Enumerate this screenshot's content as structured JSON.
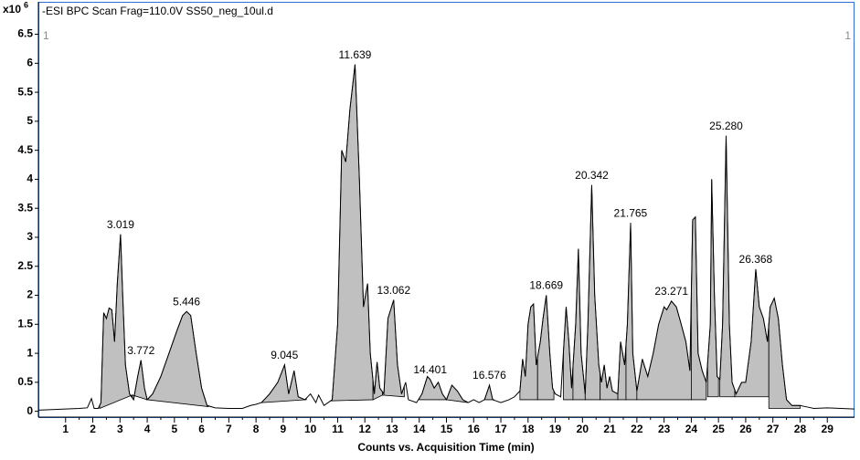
{
  "chart_data": {
    "type": "chromatogram",
    "title": "-ESI BPC Scan Frag=110.0V SS50_neg_10ul.d",
    "y_multiplier": "x10",
    "y_multiplier_exponent": "6",
    "x_label": "Counts vs. Acquisition Time (min)",
    "panel_markers": [
      "1",
      "1"
    ],
    "xlim": [
      0,
      30
    ],
    "ylim": [
      -0.1,
      6.65
    ],
    "xticks": [
      1,
      2,
      3,
      4,
      5,
      6,
      7,
      8,
      9,
      10,
      11,
      12,
      13,
      14,
      15,
      16,
      17,
      18,
      19,
      20,
      21,
      22,
      23,
      24,
      25,
      26,
      27,
      28,
      29
    ],
    "yticks": [
      0,
      0.5,
      1,
      1.5,
      2,
      2.5,
      3,
      3.5,
      4,
      4.5,
      5,
      5.5,
      6,
      6.5
    ],
    "color": "#000000",
    "fill_color": "#c0c0c0",
    "frame_color": "#2e6fd3",
    "x": [
      0,
      0.5,
      1,
      1.5,
      1.8,
      1.95,
      2.05,
      2.2,
      2.3,
      2.4,
      2.5,
      2.6,
      2.7,
      2.8,
      2.9,
      3.02,
      3.1,
      3.2,
      3.35,
      3.5,
      3.65,
      3.77,
      3.9,
      4,
      4.2,
      4.5,
      4.8,
      5.1,
      5.3,
      5.45,
      5.6,
      5.8,
      6,
      6.2,
      6.5,
      7,
      7.5,
      7.8,
      8,
      8.2,
      8.5,
      8.8,
      9.05,
      9.2,
      9.4,
      9.55,
      9.8,
      10,
      10.2,
      10.3,
      10.5,
      10.8,
      11,
      11.15,
      11.3,
      11.45,
      11.64,
      11.8,
      11.95,
      12.1,
      12.2,
      12.35,
      12.45,
      12.55,
      12.7,
      12.85,
      13.06,
      13.2,
      13.35,
      13.5,
      13.6,
      13.9,
      14.1,
      14.3,
      14.4,
      14.55,
      14.7,
      14.85,
      15,
      15.2,
      15.4,
      15.6,
      15.8,
      16,
      16.2,
      16.4,
      16.58,
      16.7,
      17,
      17.3,
      17.5,
      17.7,
      17.8,
      17.9,
      18,
      18.1,
      18.2,
      18.3,
      18.45,
      18.55,
      18.67,
      18.8,
      18.9,
      19,
      19.2,
      19.4,
      19.5,
      19.6,
      19.75,
      19.85,
      19.95,
      20.1,
      20.2,
      20.34,
      20.45,
      20.6,
      20.7,
      20.8,
      20.9,
      21,
      21.1,
      21.3,
      21.4,
      21.55,
      21.65,
      21.77,
      21.85,
      22,
      22.2,
      22.4,
      22.6,
      22.8,
      23,
      23.1,
      23.27,
      23.45,
      23.6,
      23.8,
      23.95,
      24.05,
      24.15,
      24.25,
      24.4,
      24.55,
      24.7,
      24.75,
      24.85,
      24.95,
      25.05,
      25.15,
      25.28,
      25.4,
      25.5,
      25.65,
      25.85,
      26,
      26.2,
      26.37,
      26.5,
      26.65,
      26.8,
      26.9,
      27.05,
      27.2,
      27.35,
      27.5,
      27.7,
      28,
      28.2,
      28.5,
      29,
      29.5,
      30
    ],
    "values": [
      0.02,
      0.03,
      0.04,
      0.05,
      0.06,
      0.22,
      0.05,
      0.05,
      0.15,
      1.7,
      1.6,
      1.78,
      1.75,
      1.2,
      2.2,
      3.05,
      2.0,
      0.8,
      0.3,
      0.2,
      0.6,
      0.88,
      0.4,
      0.2,
      0.3,
      0.6,
      1.0,
      1.4,
      1.65,
      1.72,
      1.65,
      1.0,
      0.4,
      0.1,
      0.06,
      0.05,
      0.05,
      0.1,
      0.12,
      0.15,
      0.3,
      0.5,
      0.8,
      0.3,
      0.7,
      0.25,
      0.2,
      0.3,
      0.15,
      0.28,
      0.1,
      0.2,
      1.5,
      4.5,
      4.3,
      5.2,
      5.98,
      4.0,
      1.8,
      2.2,
      1.0,
      0.3,
      0.85,
      0.4,
      0.3,
      1.6,
      1.92,
      0.8,
      0.3,
      0.5,
      0.2,
      0.15,
      0.3,
      0.6,
      0.55,
      0.4,
      0.5,
      0.3,
      0.2,
      0.45,
      0.35,
      0.2,
      0.15,
      0.2,
      0.15,
      0.2,
      0.45,
      0.2,
      0.15,
      0.2,
      0.25,
      0.35,
      0.9,
      0.6,
      1.5,
      1.8,
      1.85,
      0.8,
      1.2,
      1.6,
      2.0,
      1.0,
      0.4,
      0.3,
      0.25,
      1.8,
      1.2,
      0.4,
      1.5,
      2.8,
      1.0,
      0.3,
      1.5,
      3.9,
      2.0,
      0.8,
      0.5,
      0.8,
      0.4,
      0.6,
      0.35,
      0.3,
      1.2,
      0.8,
      1.5,
      3.25,
      1.0,
      0.35,
      0.9,
      0.6,
      1.0,
      1.5,
      1.8,
      1.75,
      1.9,
      1.8,
      1.55,
      1.2,
      0.7,
      3.3,
      3.35,
      1.0,
      0.7,
      0.5,
      1.5,
      4.0,
      2.0,
      0.6,
      0.55,
      1.5,
      4.75,
      1.5,
      0.5,
      0.3,
      0.5,
      0.5,
      1.2,
      2.45,
      1.8,
      1.6,
      1.2,
      1.8,
      1.95,
      1.6,
      0.8,
      0.2,
      0.1,
      0.1,
      0.08,
      0.05,
      0.06,
      0.05,
      0.04
    ],
    "regions": [
      {
        "x": [
          2.25,
          3.45
        ],
        "baseline": [
          0.05,
          0.28
        ]
      },
      {
        "x": [
          3.45,
          4.0
        ],
        "baseline": [
          0.28,
          0.2
        ]
      },
      {
        "x": [
          4.0,
          6.25
        ],
        "baseline": [
          0.2,
          0.08
        ]
      },
      {
        "x": [
          8.2,
          9.85
        ],
        "baseline": [
          0.15,
          0.2
        ]
      },
      {
        "x": [
          10.75,
          12.3
        ],
        "baseline": [
          0.18,
          0.2
        ]
      },
      {
        "x": [
          12.3,
          12.65
        ],
        "baseline": [
          0.2,
          0.28
        ]
      },
      {
        "x": [
          12.65,
          13.45
        ],
        "baseline": [
          0.28,
          0.25
        ]
      },
      {
        "x": [
          14.0,
          15.0
        ],
        "baseline": [
          0.2,
          0.2
        ]
      },
      {
        "x": [
          15.0,
          15.8
        ],
        "baseline": [
          0.2,
          0.15
        ]
      },
      {
        "x": [
          16.4,
          16.75
        ],
        "baseline": [
          0.2,
          0.2
        ]
      },
      {
        "x": [
          17.7,
          18.35
        ],
        "baseline": [
          0.2,
          0.2
        ]
      },
      {
        "x": [
          18.35,
          18.95
        ],
        "baseline": [
          0.2,
          0.2
        ]
      },
      {
        "x": [
          19.3,
          19.65
        ],
        "baseline": [
          0.2,
          0.2
        ]
      },
      {
        "x": [
          19.65,
          20.1
        ],
        "baseline": [
          0.2,
          0.2
        ]
      },
      {
        "x": [
          20.1,
          20.65
        ],
        "baseline": [
          0.2,
          0.2
        ]
      },
      {
        "x": [
          20.65,
          21.3
        ],
        "baseline": [
          0.2,
          0.2
        ]
      },
      {
        "x": [
          21.3,
          21.6
        ],
        "baseline": [
          0.2,
          0.2
        ]
      },
      {
        "x": [
          21.6,
          22.0
        ],
        "baseline": [
          0.2,
          0.2
        ]
      },
      {
        "x": [
          22.0,
          24.0
        ],
        "baseline": [
          0.2,
          0.2
        ]
      },
      {
        "x": [
          24.0,
          24.55
        ],
        "baseline": [
          0.2,
          0.2
        ]
      },
      {
        "x": [
          24.6,
          25.0
        ],
        "baseline": [
          0.25,
          0.25
        ]
      },
      {
        "x": [
          25.05,
          25.6
        ],
        "baseline": [
          0.25,
          0.25
        ]
      },
      {
        "x": [
          25.6,
          26.85
        ],
        "baseline": [
          0.25,
          0.25
        ]
      },
      {
        "x": [
          26.85,
          28.0
        ],
        "baseline": [
          0.05,
          0.05
        ]
      }
    ],
    "peak_labels": [
      {
        "value": 3.019,
        "label": "3.019",
        "y": 3.05
      },
      {
        "value": 3.772,
        "label": "3.772",
        "y": 0.88
      },
      {
        "value": 5.446,
        "label": "5.446",
        "y": 1.72
      },
      {
        "value": 9.045,
        "label": "9.045",
        "y": 0.8
      },
      {
        "value": 11.639,
        "label": "11.639",
        "y": 5.98
      },
      {
        "value": 13.062,
        "label": "13.062",
        "y": 1.92
      },
      {
        "value": 14.401,
        "label": "14.401",
        "y": 0.55
      },
      {
        "value": 16.576,
        "label": "16.576",
        "y": 0.45
      },
      {
        "value": 18.669,
        "label": "18.669",
        "y": 2.0
      },
      {
        "value": 20.342,
        "label": "20.342",
        "y": 3.9
      },
      {
        "value": 21.765,
        "label": "21.765",
        "y": 3.25
      },
      {
        "value": 23.271,
        "label": "23.271",
        "y": 1.9
      },
      {
        "value": 25.28,
        "label": "25.280",
        "y": 4.75
      },
      {
        "value": 26.368,
        "label": "26.368",
        "y": 2.45
      }
    ]
  }
}
